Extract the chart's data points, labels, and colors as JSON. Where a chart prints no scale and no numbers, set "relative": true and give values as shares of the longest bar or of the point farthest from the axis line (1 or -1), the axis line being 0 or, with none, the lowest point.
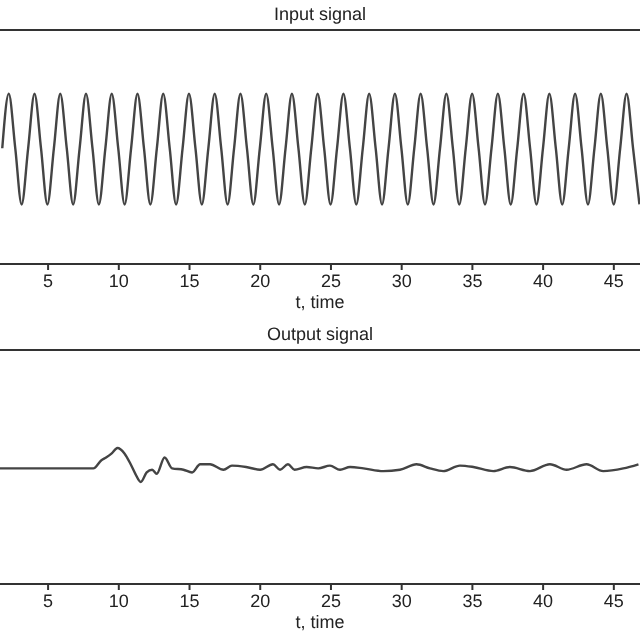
{
  "chart_data": [
    {
      "type": "line",
      "title": "Input signal",
      "xlabel": "t, time",
      "relative": true,
      "xlim": [
        1.6,
        46.85
      ],
      "xticks": [
        5,
        10,
        15,
        20,
        25,
        30,
        35,
        40,
        45
      ],
      "series": [
        {
          "color": "#444444",
          "x": [
            1.76,
            2.22,
            2.68,
            3.13,
            3.59,
            4.04,
            4.5,
            4.95,
            5.41,
            5.86,
            6.32,
            6.77,
            7.23,
            7.68,
            8.14,
            8.59,
            9.05,
            9.5,
            9.96,
            10.41,
            10.87,
            11.32,
            11.78,
            12.23,
            12.69,
            13.14,
            13.6,
            14.05,
            14.51,
            14.96,
            15.42,
            15.87,
            16.33,
            16.78,
            17.24,
            17.69,
            18.15,
            18.6,
            19.06,
            19.51,
            19.97,
            20.42,
            20.88,
            21.33,
            21.79,
            22.24,
            22.7,
            23.15,
            23.61,
            24.06,
            24.52,
            24.97,
            25.43,
            25.88,
            26.34,
            26.79,
            27.25,
            27.7,
            28.16,
            28.61,
            29.07,
            29.52,
            29.98,
            30.43,
            30.89,
            31.34,
            31.8,
            32.25,
            32.71,
            33.16,
            33.62,
            34.07,
            34.53,
            34.98,
            35.44,
            35.89,
            36.35,
            36.8,
            37.26,
            37.71,
            38.17,
            38.62,
            39.08,
            39.53,
            39.99,
            40.44,
            40.9,
            41.35,
            41.81,
            42.26,
            42.72,
            43.17,
            43.63,
            44.08,
            44.54,
            44.99,
            45.45,
            45.9,
            46.36,
            46.81
          ],
          "values": [
            0.68,
            1,
            0.68,
            0.35,
            0.68,
            1,
            0.68,
            0.35,
            0.68,
            1,
            0.68,
            0.35,
            0.68,
            1,
            0.68,
            0.35,
            0.68,
            1,
            0.68,
            0.35,
            0.68,
            1,
            0.68,
            0.35,
            0.68,
            1,
            0.68,
            0.35,
            0.68,
            1,
            0.68,
            0.35,
            0.68,
            1,
            0.68,
            0.35,
            0.68,
            1,
            0.68,
            0.35,
            0.68,
            1,
            0.68,
            0.35,
            0.68,
            1,
            0.68,
            0.35,
            0.68,
            1,
            0.68,
            0.35,
            0.68,
            1,
            0.68,
            0.35,
            0.68,
            1,
            0.68,
            0.35,
            0.68,
            1,
            0.68,
            0.35,
            0.68,
            1,
            0.68,
            0.35,
            0.68,
            1,
            0.68,
            0.35,
            0.68,
            1,
            0.68,
            0.35,
            0.68,
            1,
            0.68,
            0.35,
            0.68,
            1,
            0.68,
            0.35,
            0.68,
            1,
            0.68,
            0.35,
            0.68,
            1,
            0.68,
            0.35,
            0.68,
            1,
            0.68,
            0.35,
            0.68,
            1,
            0.68,
            0.35
          ]
        }
      ]
    },
    {
      "type": "line",
      "title": "Output signal",
      "xlabel": "t, time",
      "relative": true,
      "xlim": [
        1.6,
        46.85
      ],
      "xticks": [
        5,
        10,
        15,
        20,
        25,
        30,
        35,
        40,
        45
      ],
      "series": [
        {
          "color": "#444444",
          "x": [
            1.6,
            8.2,
            8.77,
            9.1,
            9.5,
            9.9,
            10.4,
            10.84,
            11.17,
            11.55,
            11.97,
            12.36,
            12.68,
            13.24,
            13.77,
            14.57,
            15.18,
            15.75,
            16.45,
            17.4,
            18.0,
            19.0,
            19.99,
            20.9,
            21.4,
            21.96,
            22.43,
            23.28,
            24.1,
            24.93,
            25.64,
            26.35,
            27.3,
            28.7,
            29.88,
            31.05,
            32.0,
            32.94,
            34.12,
            35.07,
            36.48,
            37.65,
            39.07,
            40.48,
            41.66,
            43.07,
            44.25,
            45.67,
            46.74
          ],
          "values": [
            0.85,
            0.85,
            0.91,
            0.93,
            0.96,
            1,
            0.96,
            0.88,
            0.81,
            0.75,
            0.82,
            0.84,
            0.81,
            0.93,
            0.85,
            0.84,
            0.82,
            0.88,
            0.88,
            0.84,
            0.87,
            0.86,
            0.84,
            0.88,
            0.84,
            0.88,
            0.84,
            0.86,
            0.85,
            0.87,
            0.84,
            0.86,
            0.85,
            0.83,
            0.84,
            0.88,
            0.85,
            0.83,
            0.87,
            0.86,
            0.83,
            0.86,
            0.83,
            0.88,
            0.84,
            0.88,
            0.83,
            0.85,
            0.88
          ]
        }
      ]
    }
  ]
}
